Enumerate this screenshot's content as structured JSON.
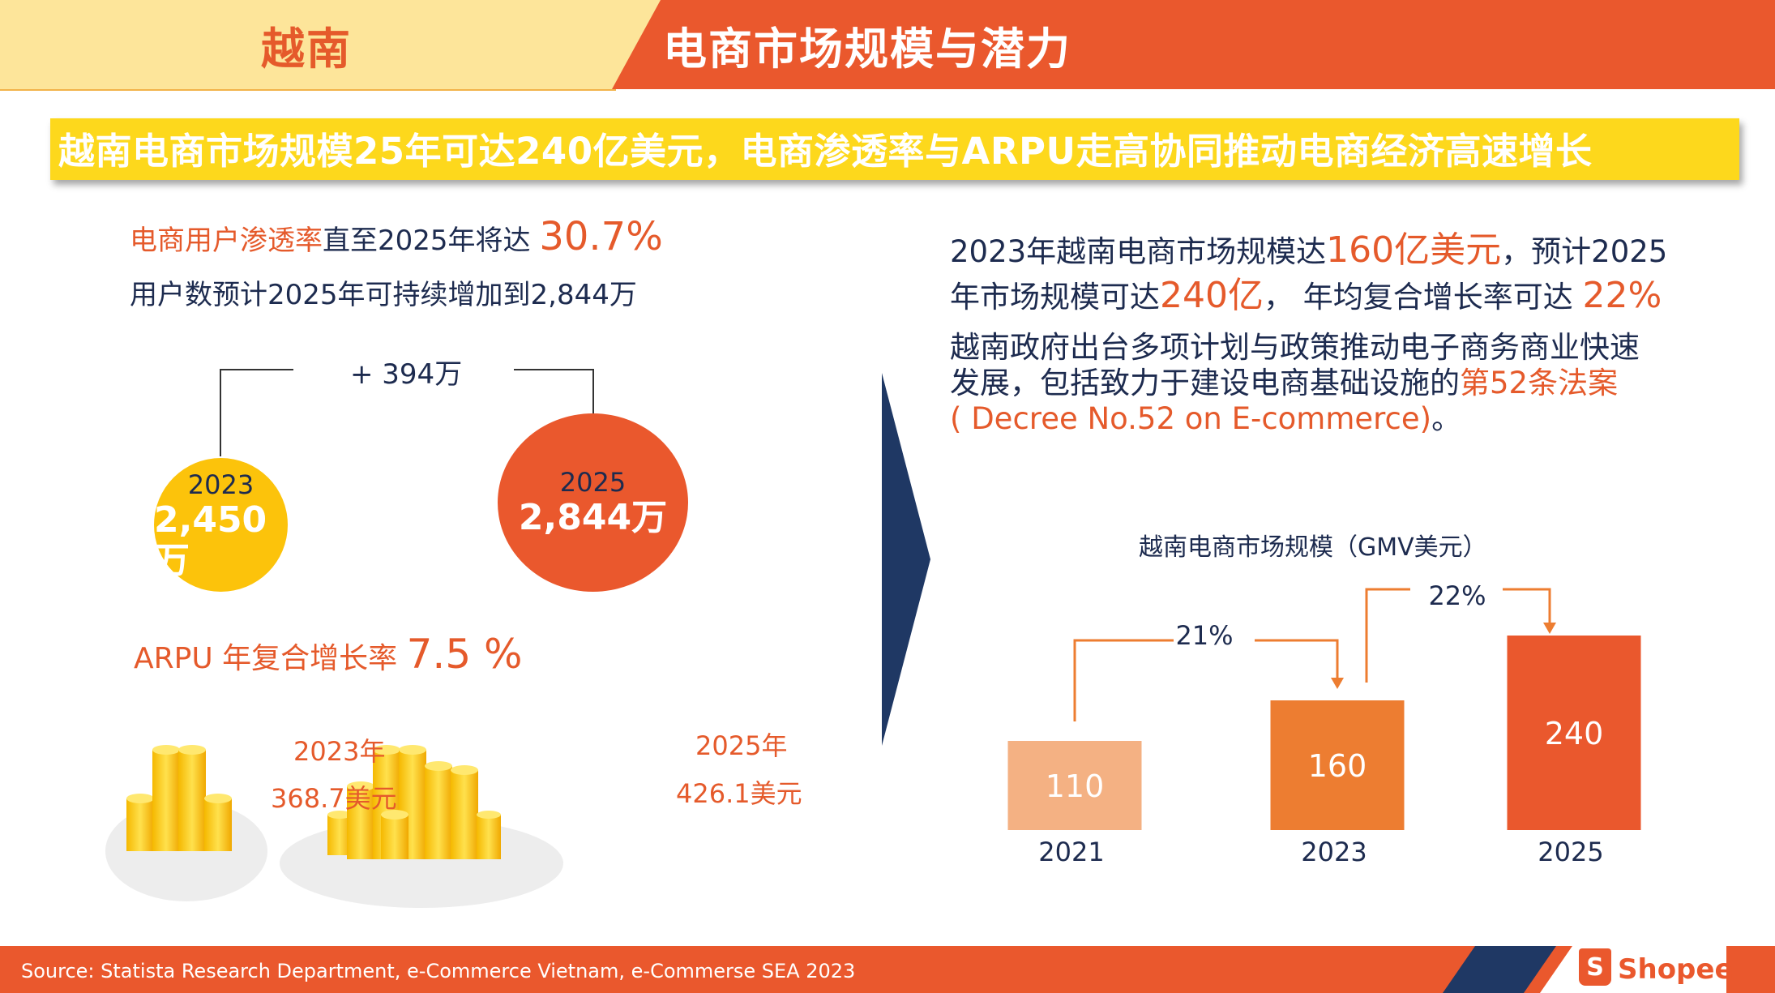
{
  "header": {
    "country": "越南",
    "title": "电商市场规模与潜力"
  },
  "banner": "越南电商市场规模25年可达240亿美元，电商渗透率与ARPU走高协同推动电商经济高速增长",
  "left": {
    "penetration_label": "电商用户渗透率",
    "penetration_text": "直至2025年将达",
    "penetration_value": "30.7%",
    "users_text": "用户数预计2025年可持续增加到2,844万",
    "increase_label": "+ 394万",
    "circle_2023": {
      "year": "2023",
      "value": "2,450万"
    },
    "circle_2025": {
      "year": "2025",
      "value": "2,844万"
    },
    "arpu_label": "ARPU 年复合增长率",
    "arpu_value": "7.5 %",
    "arpu_2023_year": "2023年",
    "arpu_2023_value": "368.7美元",
    "arpu_2025_year": "2025年",
    "arpu_2025_value": "426.1美元"
  },
  "right": {
    "p1_a": "2023年越南电商市场规模达",
    "p1_b": "160亿美元",
    "p1_c": "，预计2025",
    "p2_a": "年市场规模可达",
    "p2_b": "240亿",
    "p2_c": "， 年均复合增长率可达 ",
    "p2_d": "22%",
    "p3": "越南政府出台多项计划与政策推动电子商务商业快速",
    "p4_a": "发展，包括致力于建设电商基础设施的",
    "p4_b": "第52条法案",
    "p5_a": "( Decree No.52 on E-commerce)",
    "p5_b": "。"
  },
  "chart_data": {
    "type": "bar",
    "title": "越南电商市场规模（GMV美元）",
    "categories": [
      "2021",
      "2023",
      "2025"
    ],
    "values": [
      110,
      160,
      240
    ],
    "value_labels": [
      "110",
      "160",
      "240"
    ],
    "growth_labels": [
      "21%",
      "22%"
    ],
    "colors": [
      "#f4b183",
      "#ed7d31",
      "#ea582d"
    ],
    "ylim": [
      0,
      240
    ]
  },
  "footer": {
    "source": "Source: Statista Research Department, e-Commerce  Vietnam, e-Commerse SEA 2023",
    "logo_icon_text": "S",
    "logo_text": "Shopee"
  }
}
